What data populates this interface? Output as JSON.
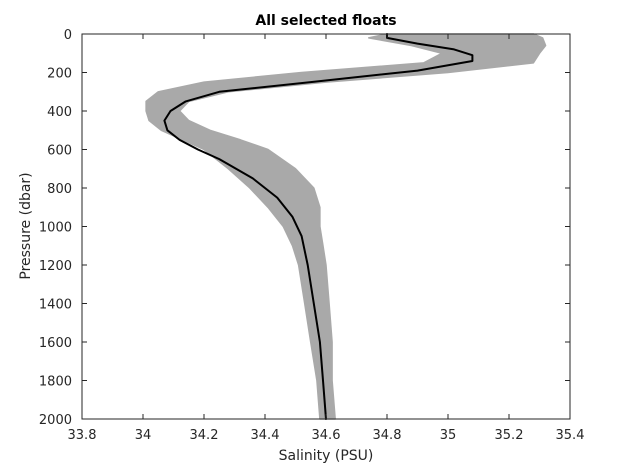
{
  "chart_data": {
    "type": "line",
    "title": "All selected floats",
    "xlabel": "Salinity (PSU)",
    "ylabel": "Pressure (dbar)",
    "xlim": [
      33.8,
      35.4
    ],
    "ylim": [
      0,
      2000
    ],
    "y_reversed": true,
    "xticks": [
      "33.8",
      "34",
      "34.2",
      "34.4",
      "34.6",
      "34.8",
      "35",
      "35.2",
      "35.4"
    ],
    "yticks": [
      "0",
      "200",
      "400",
      "600",
      "800",
      "1000",
      "1200",
      "1400",
      "1600",
      "1800",
      "2000"
    ],
    "grid": false,
    "colors": {
      "envelope": "#a9a9a9",
      "mean": "#000000",
      "axes": "#262626"
    },
    "series": [
      {
        "role": "float-envelope",
        "lower_salinity": [
          34.8,
          34.74,
          34.88,
          34.98,
          34.92,
          34.52,
          34.2,
          34.05,
          34.01,
          34.01,
          34.02,
          34.06,
          34.13,
          34.2,
          34.28,
          34.35,
          34.41,
          34.46,
          34.49,
          34.51,
          34.53,
          34.55,
          34.57,
          34.58
        ],
        "upper_salinity": [
          35.28,
          35.31,
          35.32,
          35.3,
          35.28,
          35.0,
          34.6,
          34.28,
          34.15,
          34.12,
          34.15,
          34.22,
          34.32,
          34.41,
          34.5,
          34.56,
          34.58,
          34.58,
          34.59,
          34.6,
          34.61,
          34.62,
          34.62,
          34.63
        ],
        "pressure": [
          0,
          20,
          60,
          100,
          150,
          200,
          250,
          300,
          350,
          400,
          450,
          500,
          550,
          600,
          700,
          800,
          900,
          1000,
          1100,
          1200,
          1400,
          1600,
          1800,
          2000
        ]
      },
      {
        "role": "mean-profile",
        "salinity": [
          34.8,
          34.8,
          34.9,
          35.02,
          35.08,
          35.08,
          34.9,
          34.55,
          34.25,
          34.14,
          34.09,
          34.07,
          34.08,
          34.12,
          34.18,
          34.25,
          34.36,
          34.44,
          34.49,
          34.52,
          34.54,
          34.56,
          34.58,
          34.59,
          34.6
        ],
        "pressure": [
          0,
          20,
          50,
          80,
          110,
          140,
          190,
          250,
          300,
          350,
          400,
          450,
          500,
          550,
          600,
          650,
          750,
          850,
          950,
          1050,
          1200,
          1400,
          1600,
          1800,
          2000
        ]
      }
    ]
  }
}
